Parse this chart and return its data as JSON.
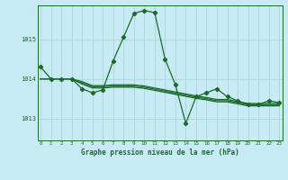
{
  "title": "Graphe pression niveau de la mer (hPa)",
  "background_color": "#c8eaf4",
  "grid_color": "#b0d8de",
  "line_color": "#1a6b2a",
  "x_ticks": [
    0,
    1,
    2,
    3,
    4,
    5,
    6,
    7,
    8,
    9,
    10,
    11,
    12,
    13,
    14,
    15,
    16,
    17,
    18,
    19,
    20,
    21,
    22,
    23
  ],
  "y_ticks": [
    1013,
    1014,
    1015
  ],
  "ylim": [
    1012.45,
    1015.85
  ],
  "xlim": [
    -0.3,
    23.3
  ],
  "series_main": [
    1014.3,
    1014.0,
    1014.0,
    1014.0,
    1013.75,
    1013.65,
    1013.72,
    1014.45,
    1015.05,
    1015.65,
    1015.72,
    1015.67,
    1014.5,
    1013.85,
    1012.88,
    1013.55,
    1013.65,
    1013.75,
    1013.55,
    1013.45,
    1013.35,
    1013.35,
    1013.45,
    1013.4
  ],
  "series_flat": [
    [
      1014.0,
      1014.0,
      1014.0,
      1014.0,
      1013.87,
      1013.77,
      1013.77,
      1013.79,
      1013.79,
      1013.79,
      1013.76,
      1013.71,
      1013.66,
      1013.61,
      1013.56,
      1013.51,
      1013.47,
      1013.42,
      1013.42,
      1013.37,
      1013.32,
      1013.32,
      1013.32,
      1013.32
    ],
    [
      1014.0,
      1014.0,
      1014.0,
      1014.0,
      1013.9,
      1013.8,
      1013.8,
      1013.82,
      1013.82,
      1013.82,
      1013.79,
      1013.74,
      1013.69,
      1013.64,
      1013.59,
      1013.54,
      1013.5,
      1013.45,
      1013.45,
      1013.4,
      1013.35,
      1013.35,
      1013.35,
      1013.35
    ],
    [
      1014.0,
      1014.0,
      1014.0,
      1014.0,
      1013.93,
      1013.83,
      1013.83,
      1013.85,
      1013.85,
      1013.85,
      1013.82,
      1013.77,
      1013.72,
      1013.67,
      1013.62,
      1013.57,
      1013.53,
      1013.48,
      1013.48,
      1013.43,
      1013.38,
      1013.38,
      1013.38,
      1013.38
    ]
  ]
}
